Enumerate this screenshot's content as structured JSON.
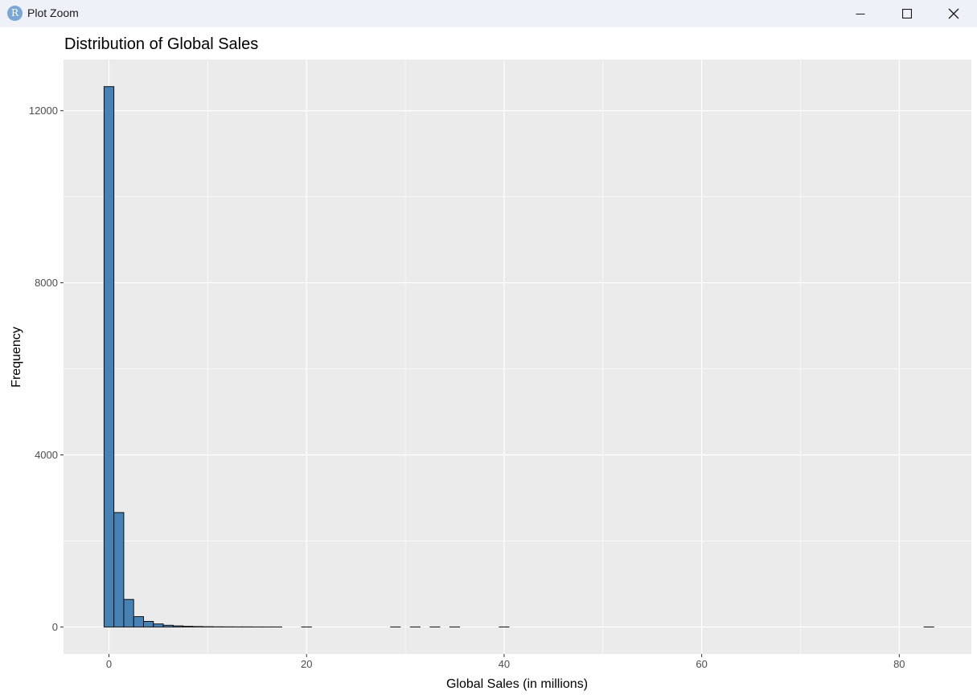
{
  "window": {
    "title": "Plot Zoom",
    "icon": "r-logo-icon",
    "icon_letter": "R",
    "controls": [
      "minimize-icon",
      "maximize-icon",
      "close-icon"
    ]
  },
  "colors": {
    "bar_fill": "#4682b4",
    "bar_stroke": "#000000",
    "panel_bg": "#ebebeb",
    "grid": "#ffffff",
    "titlebar": "#eef1f8"
  },
  "chart_data": {
    "type": "bar",
    "title": "Distribution of Global Sales",
    "xlabel": "Global Sales (in millions)",
    "ylabel": "Frequency",
    "bin_width": 1,
    "x": [
      0,
      1,
      2,
      3,
      4,
      5,
      6,
      7,
      8,
      9,
      10,
      11,
      12,
      13,
      14,
      15,
      16,
      17,
      18,
      19,
      20,
      21,
      22,
      23,
      24,
      25,
      26,
      27,
      28,
      29,
      30,
      31,
      32,
      33,
      34,
      35,
      36,
      37,
      38,
      39,
      40,
      41,
      42,
      43,
      44,
      45,
      46,
      47,
      48,
      49,
      50,
      51,
      52,
      53,
      54,
      55,
      56,
      57,
      58,
      59,
      60,
      61,
      62,
      63,
      64,
      65,
      66,
      67,
      68,
      69,
      70,
      71,
      72,
      73,
      74,
      75,
      76,
      77,
      78,
      79,
      80,
      81,
      82,
      83
    ],
    "values": [
      12560,
      2660,
      640,
      240,
      130,
      70,
      40,
      25,
      15,
      10,
      6,
      4,
      3,
      2,
      2,
      1,
      1,
      1,
      0,
      0,
      1,
      0,
      0,
      0,
      0,
      0,
      0,
      0,
      0,
      1,
      0,
      1,
      0,
      1,
      0,
      1,
      0,
      0,
      0,
      0,
      1,
      0,
      0,
      0,
      0,
      0,
      0,
      0,
      0,
      0,
      0,
      0,
      0,
      0,
      0,
      0,
      0,
      0,
      0,
      0,
      0,
      0,
      0,
      0,
      0,
      0,
      0,
      0,
      0,
      0,
      0,
      0,
      0,
      0,
      0,
      0,
      0,
      0,
      0,
      0,
      0,
      0,
      0,
      1
    ],
    "xlim": [
      -4.6,
      87.3
    ],
    "ylim": [
      -628,
      13190
    ],
    "x_ticks": [
      0,
      20,
      40,
      60,
      80
    ],
    "y_ticks": [
      0,
      4000,
      8000,
      12000
    ],
    "x_tick_labels": [
      "0",
      "20",
      "40",
      "60",
      "80"
    ],
    "y_tick_labels": [
      "0",
      "4000",
      "8000",
      "12000"
    ],
    "grid": true,
    "legend": "none"
  }
}
